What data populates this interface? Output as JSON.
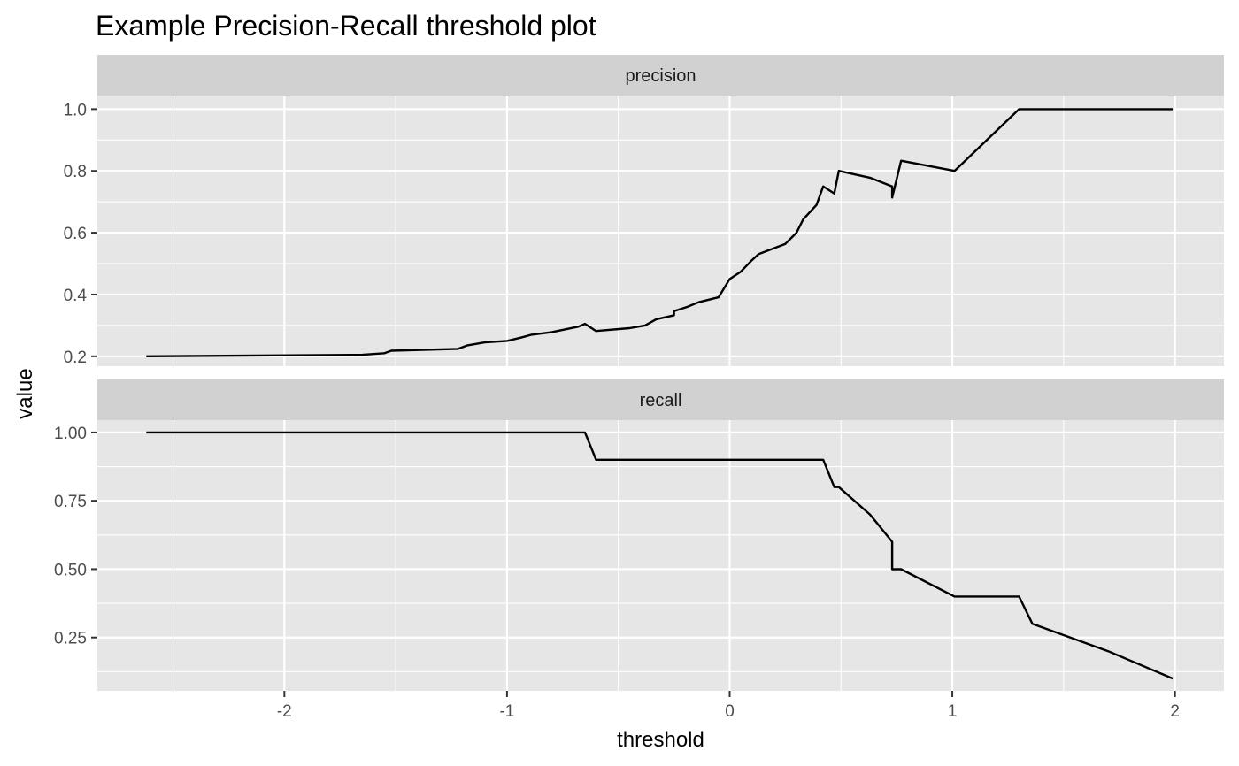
{
  "chart_data": {
    "type": "line",
    "title": "Example Precision-Recall threshold plot",
    "xlabel": "threshold",
    "ylabel": "value",
    "xlim": [
      -2.84,
      2.22
    ],
    "x_ticks": [
      -2,
      -1,
      0,
      1,
      2
    ],
    "x_tick_labels": [
      "-2",
      "-1",
      "0",
      "1",
      "2"
    ],
    "grid": true,
    "colors": {
      "panel": "#e6e6e6",
      "strip": "#d1d1d1",
      "grid": "#ffffff",
      "line": "#000000"
    },
    "facets": [
      {
        "strip": "precision",
        "ylim": [
          0.168,
          1.044
        ],
        "y_ticks": [
          0.2,
          0.4,
          0.6,
          0.8,
          1.0
        ],
        "y_tick_labels": [
          "0.2",
          "0.4",
          "0.6",
          "0.8",
          "1.0"
        ],
        "y_minor": [
          0.3,
          0.5,
          0.7,
          0.9
        ],
        "points": [
          [
            -2.62,
            0.2
          ],
          [
            -1.65,
            0.205
          ],
          [
            -1.55,
            0.21
          ],
          [
            -1.52,
            0.218
          ],
          [
            -1.22,
            0.224
          ],
          [
            -1.18,
            0.235
          ],
          [
            -1.1,
            0.245
          ],
          [
            -1.0,
            0.25
          ],
          [
            -0.93,
            0.262
          ],
          [
            -0.89,
            0.27
          ],
          [
            -0.8,
            0.278
          ],
          [
            -0.74,
            0.287
          ],
          [
            -0.68,
            0.296
          ],
          [
            -0.65,
            0.305
          ],
          [
            -0.6,
            0.282
          ],
          [
            -0.45,
            0.291
          ],
          [
            -0.38,
            0.3
          ],
          [
            -0.33,
            0.32
          ],
          [
            -0.25,
            0.333
          ],
          [
            -0.25,
            0.346
          ],
          [
            -0.19,
            0.36
          ],
          [
            -0.14,
            0.375
          ],
          [
            -0.05,
            0.391
          ],
          [
            0.0,
            0.45
          ],
          [
            0.05,
            0.474
          ],
          [
            0.1,
            0.511
          ],
          [
            0.13,
            0.531
          ],
          [
            0.25,
            0.564
          ],
          [
            0.3,
            0.6
          ],
          [
            0.33,
            0.643
          ],
          [
            0.39,
            0.69
          ],
          [
            0.42,
            0.75
          ],
          [
            0.47,
            0.727
          ],
          [
            0.49,
            0.8
          ],
          [
            0.63,
            0.778
          ],
          [
            0.73,
            0.75
          ],
          [
            0.73,
            0.714
          ],
          [
            0.77,
            0.833
          ],
          [
            1.01,
            0.8
          ],
          [
            1.3,
            1.0
          ],
          [
            1.99,
            1.0
          ]
        ]
      },
      {
        "strip": "recall",
        "ylim": [
          0.055,
          1.045
        ],
        "y_ticks": [
          0.25,
          0.5,
          0.75,
          1.0
        ],
        "y_tick_labels": [
          "0.25",
          "0.50",
          "0.75",
          "1.00"
        ],
        "y_minor": [
          0.125,
          0.375,
          0.625,
          0.875
        ],
        "points": [
          [
            -2.62,
            1.0
          ],
          [
            -0.65,
            1.0
          ],
          [
            -0.6,
            0.9
          ],
          [
            0.42,
            0.9
          ],
          [
            0.47,
            0.8
          ],
          [
            0.49,
            0.8
          ],
          [
            0.63,
            0.7
          ],
          [
            0.73,
            0.6
          ],
          [
            0.73,
            0.5
          ],
          [
            0.77,
            0.5
          ],
          [
            1.01,
            0.4
          ],
          [
            1.3,
            0.4
          ],
          [
            1.36,
            0.3
          ],
          [
            1.7,
            0.2
          ],
          [
            1.99,
            0.1
          ]
        ]
      }
    ]
  }
}
